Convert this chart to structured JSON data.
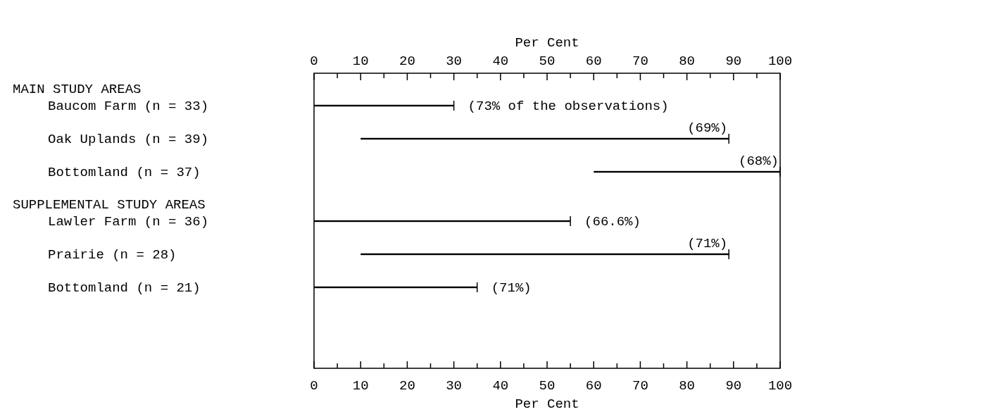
{
  "chart_data": {
    "type": "bar",
    "orientation": "horizontal",
    "xlabel": "Per Cent",
    "x2label": "Per Cent",
    "categories": [
      "Baucom Farm (n = 33)",
      "Oak Uplands (n = 39)",
      "Bottomland (n = 37)",
      "Lawler Farm (n = 36)",
      "Prairie (n = 28)",
      "Bottomland (n = 21)"
    ],
    "base": [
      0,
      10,
      60,
      0,
      10,
      0
    ],
    "values": [
      30,
      79,
      40,
      55,
      79,
      35
    ],
    "color": "#000000",
    "xlim": [
      0,
      100
    ],
    "x2lim": [
      0,
      100
    ],
    "xticks": [
      0,
      {
        "value": 5,
        "label": null
      },
      10,
      {
        "value": 15,
        "label": null
      },
      20,
      {
        "value": 25,
        "label": null
      },
      30,
      {
        "value": 35,
        "label": null
      },
      40,
      {
        "value": 45,
        "label": null
      },
      50,
      {
        "value": 55,
        "label": null
      },
      60,
      {
        "value": 65,
        "label": null
      },
      70,
      {
        "value": 75,
        "label": null
      },
      80,
      {
        "value": 85,
        "label": null
      },
      90,
      {
        "value": 95,
        "label": null
      },
      100
    ],
    "x2ticks": [
      0,
      {
        "value": 5,
        "label": null
      },
      10,
      {
        "value": 15,
        "label": null
      },
      20,
      {
        "value": 25,
        "label": null
      },
      30,
      {
        "value": 35,
        "label": null
      },
      40,
      {
        "value": 45,
        "label": null
      },
      50,
      {
        "value": 55,
        "label": null
      },
      60,
      {
        "value": 65,
        "label": null
      },
      70,
      {
        "value": 75,
        "label": null
      },
      80,
      {
        "value": 85,
        "label": null
      },
      90,
      {
        "value": 95,
        "label": null
      },
      100
    ],
    "annotations": [
      "MAIN STUDY AREAS",
      "SUPPLEMENTAL STUDY AREAS",
      "(73% of the observations)",
      "(69%)",
      "(68%)",
      "(66.6%)",
      "(71%)",
      "(71%)"
    ],
    "grid": false
  }
}
